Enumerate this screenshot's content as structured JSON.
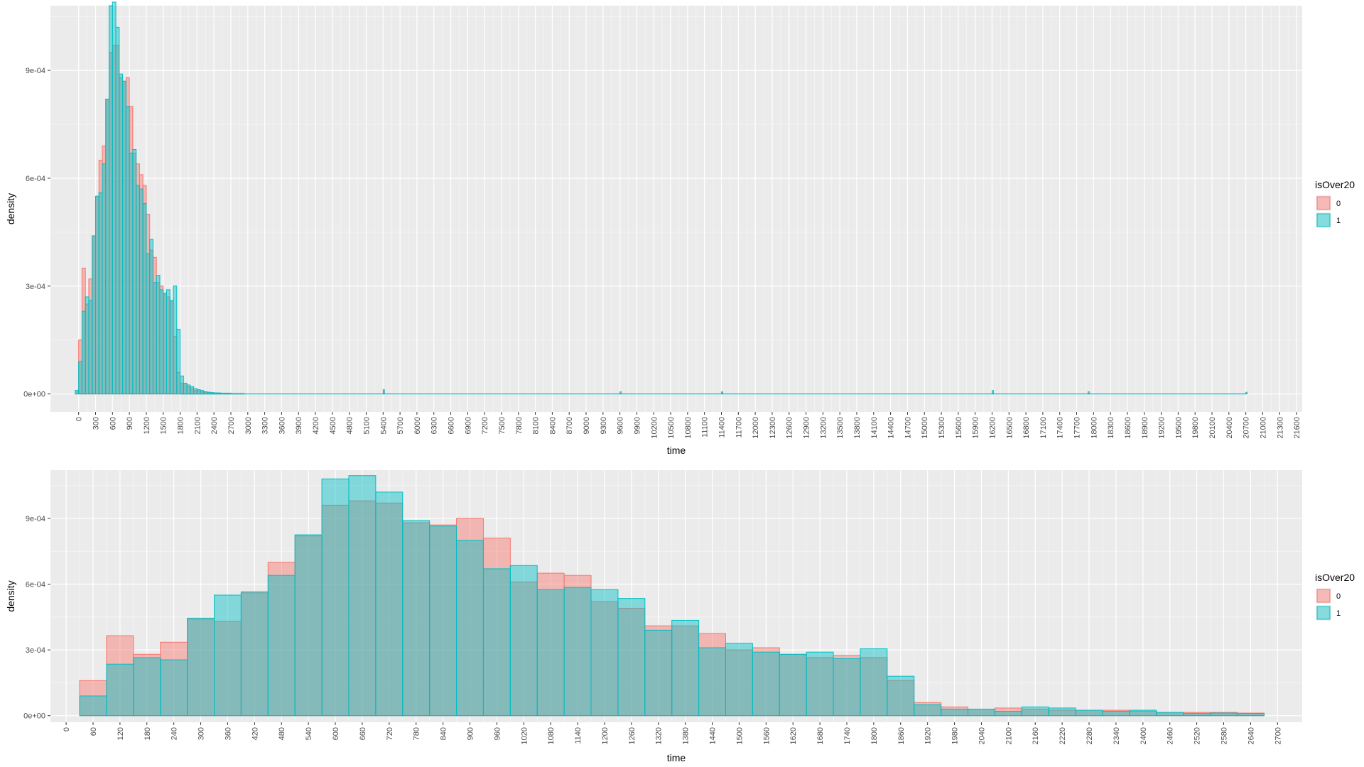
{
  "colors": {
    "panel_bg": "#EBEBEB",
    "grid_major": "#FFFFFF",
    "grid_minor": "#F5F5F5",
    "series_0_fill": "#F8766D",
    "series_1_fill": "#00BFC4",
    "series_fill_alpha": 0.45,
    "overlap_tint": "#8FB8B3",
    "text": "#4D4D4D"
  },
  "chart_data": [
    {
      "type": "bar",
      "subtype": "overlaid histogram",
      "xlabel": "time",
      "ylabel": "density",
      "legend": {
        "title": "isOver20",
        "position": "right",
        "entries": [
          "0",
          "1"
        ]
      },
      "grid": true,
      "xlim": [
        -500,
        21700
      ],
      "ylim": [
        -5e-05,
        0.00108
      ],
      "x_ticks": [
        0,
        300,
        600,
        900,
        1200,
        1500,
        1800,
        2100,
        2400,
        2700,
        3000,
        3300,
        3600,
        3900,
        4200,
        4500,
        4800,
        5100,
        5400,
        5700,
        6000,
        6300,
        6600,
        6900,
        7200,
        7500,
        7800,
        8100,
        8400,
        8700,
        9000,
        9300,
        9600,
        9900,
        10200,
        10500,
        10800,
        11100,
        11400,
        11700,
        12000,
        12300,
        12600,
        12900,
        13200,
        13500,
        13800,
        14100,
        14400,
        14700,
        15000,
        15300,
        15600,
        15900,
        16200,
        16500,
        16800,
        17100,
        17400,
        17700,
        18000,
        18300,
        18600,
        18900,
        19200,
        19500,
        19800,
        20100,
        20400,
        20700,
        21000,
        21300,
        21600
      ],
      "x_tick_labels": [
        "0",
        "300",
        "600",
        "900",
        "1200",
        "1500",
        "1800",
        "2100",
        "2400",
        "2700",
        "3000",
        "3300",
        "3600",
        "3900",
        "4200",
        "4500",
        "4800",
        "5100",
        "5400",
        "5700",
        "6000",
        "6300",
        "6600",
        "6900",
        "7200",
        "7500",
        "7800",
        "8100",
        "8400",
        "8700",
        "9000",
        "9300",
        "9600",
        "9900",
        "10200",
        "10500",
        "10800",
        "11100",
        "11400",
        "11700",
        "12000",
        "12300",
        "12600",
        "12900",
        "13200",
        "13500",
        "13800",
        "14100",
        "14400",
        "14700",
        "15000",
        "15300",
        "15600",
        "15900",
        "16200",
        "16500",
        "16800",
        "17100",
        "17400",
        "17700",
        "18000",
        "18300",
        "18600",
        "18900",
        "19200",
        "19500",
        "19800",
        "20100",
        "20400",
        "20700",
        "21000",
        "21300",
        "21600"
      ],
      "y_ticks": [
        0,
        0.0003,
        0.0006,
        0.0009
      ],
      "y_tick_labels": [
        "0e+00",
        "3e-04",
        "6e-04",
        "9e-04"
      ],
      "binwidth": 60,
      "bin_start": -60,
      "series": [
        {
          "name": "0",
          "values": [
            1e-05,
            0.00015,
            0.00035,
            0.00025,
            0.00032,
            0.00044,
            0.00055,
            0.00065,
            0.00069,
            0.00082,
            0.00095,
            0.00097,
            0.00097,
            0.00088,
            0.00087,
            0.00088,
            0.0008,
            0.00067,
            0.00064,
            0.00061,
            0.00058,
            0.0005,
            0.0004,
            0.00038,
            0.00031,
            0.0003,
            0.00028,
            0.00027,
            0.00026,
            0.00016,
            6e-05,
            3e-05,
            3e-05,
            2e-05,
            1.5e-05,
            1e-05,
            8e-06,
            6e-06,
            5e-06,
            4e-06,
            3e-06,
            3e-06,
            2e-06,
            2e-06,
            2e-06,
            2e-06,
            1e-06,
            1e-06,
            1e-06,
            1e-06
          ]
        },
        {
          "name": "1",
          "values": [
            1e-05,
            9e-05,
            0.00023,
            0.00027,
            0.00026,
            0.00044,
            0.00055,
            0.00056,
            0.00064,
            0.00082,
            0.00108,
            0.00109,
            0.00102,
            0.00089,
            0.00087,
            0.0008,
            0.00067,
            0.00068,
            0.00058,
            0.00057,
            0.00053,
            0.00039,
            0.00043,
            0.00031,
            0.00033,
            0.00029,
            0.00028,
            0.00029,
            0.00026,
            0.0003,
            0.00018,
            5e-05,
            3e-05,
            2.5e-05,
            2e-05,
            1.5e-05,
            1.2e-05,
            1e-05,
            6e-06,
            5e-06,
            4e-06,
            3e-06,
            3e-06,
            2e-06,
            2e-06,
            2e-06,
            1e-06,
            1e-06,
            1e-06,
            1e-06
          ]
        }
      ],
      "sparse_tail_spikes": [
        {
          "x": 5400,
          "values": [
            8e-06,
            1.2e-05
          ]
        },
        {
          "x": 9600,
          "values": [
            3e-06,
            6e-06
          ]
        },
        {
          "x": 11400,
          "values": [
            3e-06,
            6e-06
          ]
        },
        {
          "x": 16200,
          "values": [
            2e-06,
            1e-05
          ]
        },
        {
          "x": 17900,
          "values": [
            2e-06,
            6e-06
          ]
        },
        {
          "x": 20700,
          "values": [
            2e-06,
            5e-06
          ]
        }
      ]
    },
    {
      "type": "bar",
      "subtype": "overlaid histogram",
      "xlabel": "time",
      "ylabel": "density",
      "legend": {
        "title": "isOver20",
        "position": "right",
        "entries": [
          "0",
          "1"
        ]
      },
      "grid": true,
      "xlim": [
        -35,
        2755
      ],
      "ylim": [
        -3e-05,
        0.00112
      ],
      "x_ticks": [
        0,
        60,
        120,
        180,
        240,
        300,
        360,
        420,
        480,
        540,
        600,
        660,
        720,
        780,
        840,
        900,
        960,
        1020,
        1080,
        1140,
        1200,
        1260,
        1320,
        1380,
        1440,
        1500,
        1560,
        1620,
        1680,
        1740,
        1800,
        1860,
        1920,
        1980,
        2040,
        2100,
        2160,
        2220,
        2280,
        2340,
        2400,
        2460,
        2520,
        2580,
        2640,
        2700
      ],
      "x_tick_labels": [
        "0",
        "60",
        "120",
        "180",
        "240",
        "300",
        "360",
        "420",
        "480",
        "540",
        "600",
        "660",
        "720",
        "780",
        "840",
        "900",
        "960",
        "1020",
        "1080",
        "1140",
        "1200",
        "1260",
        "1320",
        "1380",
        "1440",
        "1500",
        "1560",
        "1620",
        "1680",
        "1740",
        "1800",
        "1860",
        "1920",
        "1980",
        "2040",
        "2100",
        "2160",
        "2220",
        "2280",
        "2340",
        "2400",
        "2460",
        "2520",
        "2580",
        "2640",
        "2700"
      ],
      "y_ticks": [
        0,
        0.0003,
        0.0006,
        0.0009
      ],
      "y_tick_labels": [
        "0e+00",
        "3e-04",
        "6e-04",
        "9e-04"
      ],
      "bin_edges": [
        30,
        90,
        150,
        210,
        270,
        330,
        390,
        450,
        510,
        570,
        630,
        690,
        750,
        810,
        870,
        930,
        990,
        1050,
        1110,
        1170,
        1230,
        1290,
        1350,
        1410,
        1470,
        1530,
        1590,
        1650,
        1710,
        1770,
        1830,
        1890,
        1950,
        2010,
        2070,
        2130,
        2190,
        2250,
        2310,
        2370,
        2430,
        2490,
        2550,
        2610,
        2670
      ],
      "series": [
        {
          "name": "0",
          "values": [
            0.00016,
            0.000365,
            0.00028,
            0.000335,
            0.00044,
            0.00043,
            0.00056,
            0.0007,
            0.00082,
            0.00096,
            0.00098,
            0.00097,
            0.00088,
            0.00087,
            0.0009,
            0.00081,
            0.00061,
            0.00065,
            0.00064,
            0.00052,
            0.00049,
            0.00041,
            0.00041,
            0.000375,
            0.0003,
            0.00031,
            0.00028,
            0.000265,
            0.000275,
            0.000265,
            0.00016,
            6e-05,
            4e-05,
            3e-05,
            3.5e-05,
            3e-05,
            2.5e-05,
            2.5e-05,
            2.5e-05,
            2e-05,
            1.5e-05,
            1.5e-05,
            1.5e-05,
            1.2e-05
          ]
        },
        {
          "name": "1",
          "values": [
            9e-05,
            0.000235,
            0.000265,
            0.000255,
            0.000445,
            0.00055,
            0.000565,
            0.00064,
            0.000825,
            0.00108,
            0.001095,
            0.00102,
            0.00089,
            0.000865,
            0.0008,
            0.00067,
            0.000685,
            0.000575,
            0.000585,
            0.000575,
            0.000535,
            0.00039,
            0.000435,
            0.00031,
            0.00033,
            0.00029,
            0.00028,
            0.00029,
            0.00026,
            0.000305,
            0.00018,
            5e-05,
            3e-05,
            3e-05,
            2e-05,
            4e-05,
            3.5e-05,
            2.5e-05,
            2e-05,
            2.5e-05,
            1.5e-05,
            1e-05,
            1.2e-05,
            1e-05
          ]
        }
      ]
    }
  ]
}
